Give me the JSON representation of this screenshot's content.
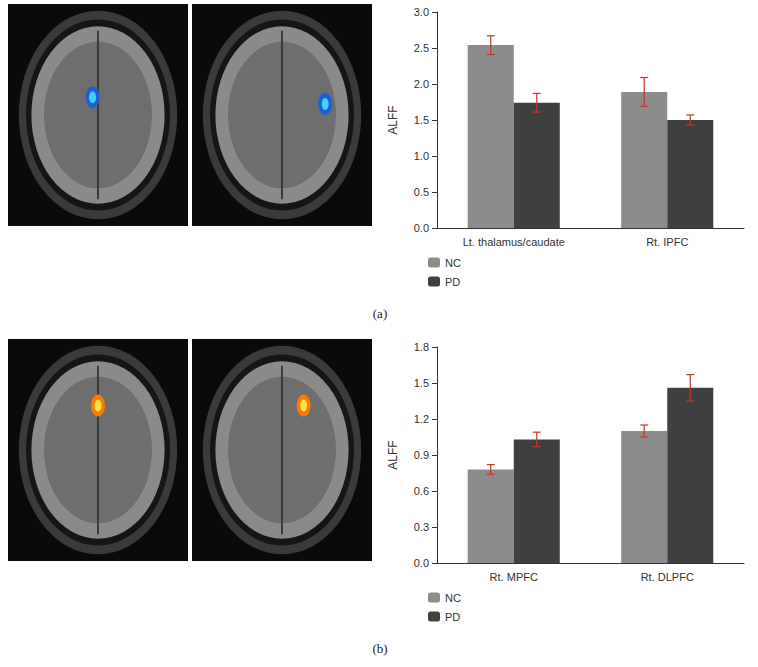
{
  "chart_data": [
    {
      "type": "bar",
      "title": "(a)",
      "y_label": "ALFF",
      "categories": [
        "Lt. thalamus/caudate",
        "Rt. IPFC"
      ],
      "series": [
        {
          "name": "NC",
          "color": "#8c8c8c",
          "values": [
            2.54,
            1.89
          ],
          "errors": [
            0.13,
            0.2
          ]
        },
        {
          "name": "PD",
          "color": "#404040",
          "values": [
            1.74,
            1.5
          ],
          "errors": [
            0.13,
            0.07
          ]
        }
      ],
      "error_color": "#c0392b",
      "ylim": [
        0,
        3
      ],
      "yticks": [
        {
          "value": 0,
          "label": "0.0"
        },
        0.5,
        {
          "value": 1,
          "label": "1.0"
        },
        1.5,
        {
          "value": 2,
          "label": "2.0"
        },
        2.5,
        {
          "value": 3,
          "label": "3.0"
        }
      ],
      "grid": false,
      "legend": "bottom-left"
    },
    {
      "type": "bar",
      "title": "(b)",
      "y_label": "ALFF",
      "categories": [
        "Rt. MPFC",
        "Rt. DLPFC"
      ],
      "series": [
        {
          "name": "NC",
          "color": "#8c8c8c",
          "values": [
            0.78,
            1.1
          ],
          "errors": [
            0.04,
            0.05
          ]
        },
        {
          "name": "PD",
          "color": "#404040",
          "values": [
            1.03,
            1.46
          ],
          "errors": [
            0.06,
            0.11
          ]
        }
      ],
      "error_color": "#c0392b",
      "ylim": [
        0,
        1.8
      ],
      "yticks": [
        {
          "value": 0,
          "label": "0.0"
        },
        0.3,
        0.6,
        0.9,
        1.2,
        1.5,
        1.8
      ],
      "grid": false,
      "legend": "bottom-left"
    }
  ]
}
